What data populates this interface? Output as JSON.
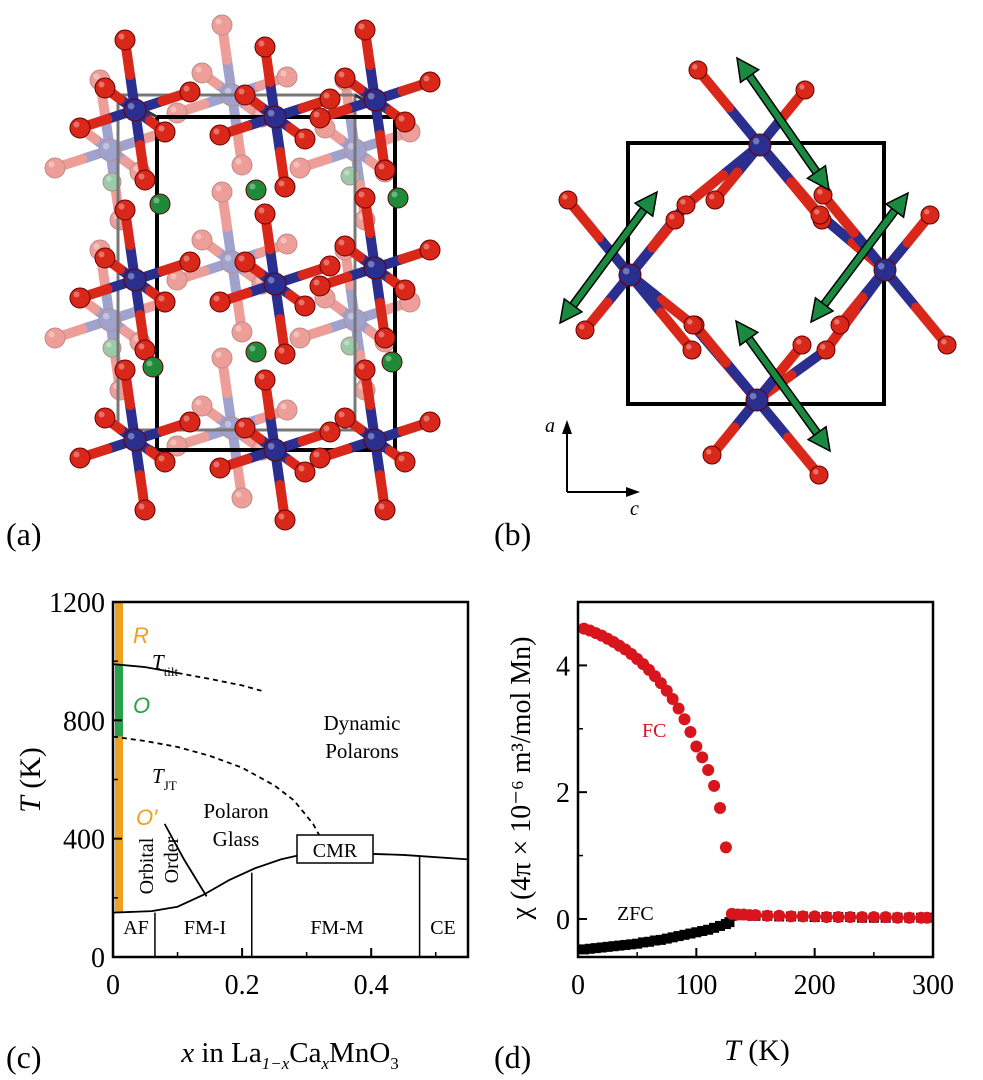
{
  "panel_labels": {
    "a": "(a)",
    "b": "(b)",
    "c": "(c)",
    "d": "(d)"
  },
  "colors": {
    "mn": "#2a2f8f",
    "o": "#d9281a",
    "la": "#1e8a3a",
    "arrow": "#1a8a40",
    "orange": "#f0a020",
    "green_phase": "#2aa04a",
    "fc": "#d8141c",
    "zfc": "#000000"
  },
  "panel_b": {
    "axis_a": "a",
    "axis_c": "c"
  },
  "chart_data": [
    {
      "type": "phase-diagram",
      "panel": "(c)",
      "xlabel": {
        "pre": "x",
        "text": " in La",
        "sub1": "1−x",
        "text2": "Ca",
        "sub2": "x",
        "text3": "MnO",
        "sub3": "3"
      },
      "ylabel": {
        "symbol": "T",
        "unit": " (K)"
      },
      "xlim": [
        0,
        0.55
      ],
      "ylim": [
        0,
        1200
      ],
      "xticks": [
        0,
        0.2,
        0.4
      ],
      "xtick_labels": [
        "0",
        "0.2",
        "0.4"
      ],
      "yticks": [
        0,
        400,
        800,
        1200
      ],
      "ytick_labels": [
        "0",
        "400",
        "800",
        "1200"
      ],
      "phase_labels": {
        "R": "R",
        "O": "O",
        "Oprime": "O′",
        "T_tilt": "T",
        "T_tilt_sub": "tilt",
        "T_JT": "T",
        "T_JT_sub": "JT",
        "dynamic": [
          "Dynamic",
          "Polarons"
        ],
        "glass": [
          "Polaron",
          "Glass"
        ],
        "orbital": [
          "Orbital",
          "Order"
        ],
        "cmr": "CMR",
        "AF": "AF",
        "FMI": "FM-I",
        "FMM": "FM-M",
        "CE": "CE"
      },
      "curves": {
        "T_tilt_solid": [
          [
            0.0,
            990
          ],
          [
            0.05,
            980
          ],
          [
            0.1,
            960
          ]
        ],
        "T_tilt_dashed": [
          [
            0.1,
            960
          ],
          [
            0.15,
            940
          ],
          [
            0.2,
            918
          ],
          [
            0.23,
            900
          ]
        ],
        "T_JT_dashed": [
          [
            0.0,
            745
          ],
          [
            0.05,
            730
          ],
          [
            0.1,
            710
          ],
          [
            0.15,
            680
          ],
          [
            0.2,
            640
          ],
          [
            0.25,
            580
          ],
          [
            0.28,
            530
          ],
          [
            0.31,
            450
          ],
          [
            0.32,
            410
          ]
        ],
        "orbital_boundary": [
          [
            0.08,
            450
          ],
          [
            0.11,
            330
          ],
          [
            0.145,
            205
          ]
        ],
        "fm_boundary": [
          [
            0.0,
            150
          ],
          [
            0.06,
            155
          ],
          [
            0.1,
            170
          ],
          [
            0.14,
            210
          ],
          [
            0.18,
            260
          ],
          [
            0.22,
            300
          ],
          [
            0.26,
            330
          ],
          [
            0.3,
            350
          ],
          [
            0.34,
            355
          ],
          [
            0.38,
            350
          ],
          [
            0.45,
            345
          ],
          [
            0.55,
            330
          ]
        ],
        "verticals": [
          [
            0.065,
            0,
            150
          ],
          [
            0.215,
            0,
            285
          ],
          [
            0.475,
            0,
            340
          ]
        ]
      }
    },
    {
      "type": "scatter",
      "panel": "(d)",
      "xlabel": {
        "symbol": "T",
        "unit": " (K)"
      },
      "ylabel": "χ (4π × 10⁻⁶ m³/mol Mn)",
      "xlim": [
        0,
        300
      ],
      "ylim": [
        -0.6,
        5
      ],
      "xticks": [
        0,
        100,
        200,
        300
      ],
      "xtick_labels": [
        "0",
        "100",
        "200",
        "300"
      ],
      "yticks": [
        0,
        2,
        4
      ],
      "ytick_labels": [
        "0",
        "2",
        "4"
      ],
      "series": [
        {
          "name": "FC",
          "x": [
            5,
            10,
            15,
            20,
            25,
            30,
            35,
            40,
            45,
            50,
            55,
            60,
            65,
            70,
            75,
            80,
            85,
            90,
            95,
            100,
            105,
            110,
            115,
            120,
            125,
            130,
            135,
            140,
            145,
            150,
            160,
            170,
            180,
            190,
            200,
            210,
            220,
            230,
            240,
            250,
            260,
            270,
            280,
            290,
            295
          ],
          "y": [
            4.58,
            4.55,
            4.51,
            4.47,
            4.42,
            4.37,
            4.31,
            4.25,
            4.18,
            4.1,
            4.02,
            3.93,
            3.83,
            3.72,
            3.6,
            3.47,
            3.32,
            3.15,
            2.95,
            2.72,
            2.55,
            2.35,
            2.1,
            1.75,
            1.13,
            0.08,
            0.07,
            0.07,
            0.06,
            0.06,
            0.05,
            0.05,
            0.04,
            0.04,
            0.04,
            0.03,
            0.03,
            0.03,
            0.03,
            0.03,
            0.03,
            0.02,
            0.02,
            0.02,
            0.02
          ]
        },
        {
          "name": "ZFC",
          "x": [
            5,
            10,
            15,
            20,
            25,
            30,
            35,
            40,
            45,
            50,
            55,
            60,
            65,
            70,
            75,
            80,
            85,
            90,
            95,
            100,
            105,
            110,
            115,
            120,
            125,
            128,
            130,
            140,
            150,
            160,
            170,
            180,
            190,
            200,
            210,
            220,
            230,
            240,
            250,
            260,
            270,
            280,
            290,
            295
          ],
          "y": [
            -0.48,
            -0.47,
            -0.46,
            -0.45,
            -0.44,
            -0.43,
            -0.42,
            -0.41,
            -0.4,
            -0.39,
            -0.37,
            -0.36,
            -0.34,
            -0.33,
            -0.31,
            -0.29,
            -0.27,
            -0.25,
            -0.23,
            -0.21,
            -0.19,
            -0.17,
            -0.14,
            -0.11,
            -0.08,
            -0.05,
            0.05,
            0.06,
            0.05,
            0.05,
            0.04,
            0.04,
            0.04,
            0.03,
            0.03,
            0.03,
            0.03,
            0.02,
            0.02,
            0.02,
            0.02,
            0.02,
            0.02,
            0.02
          ]
        }
      ]
    }
  ]
}
